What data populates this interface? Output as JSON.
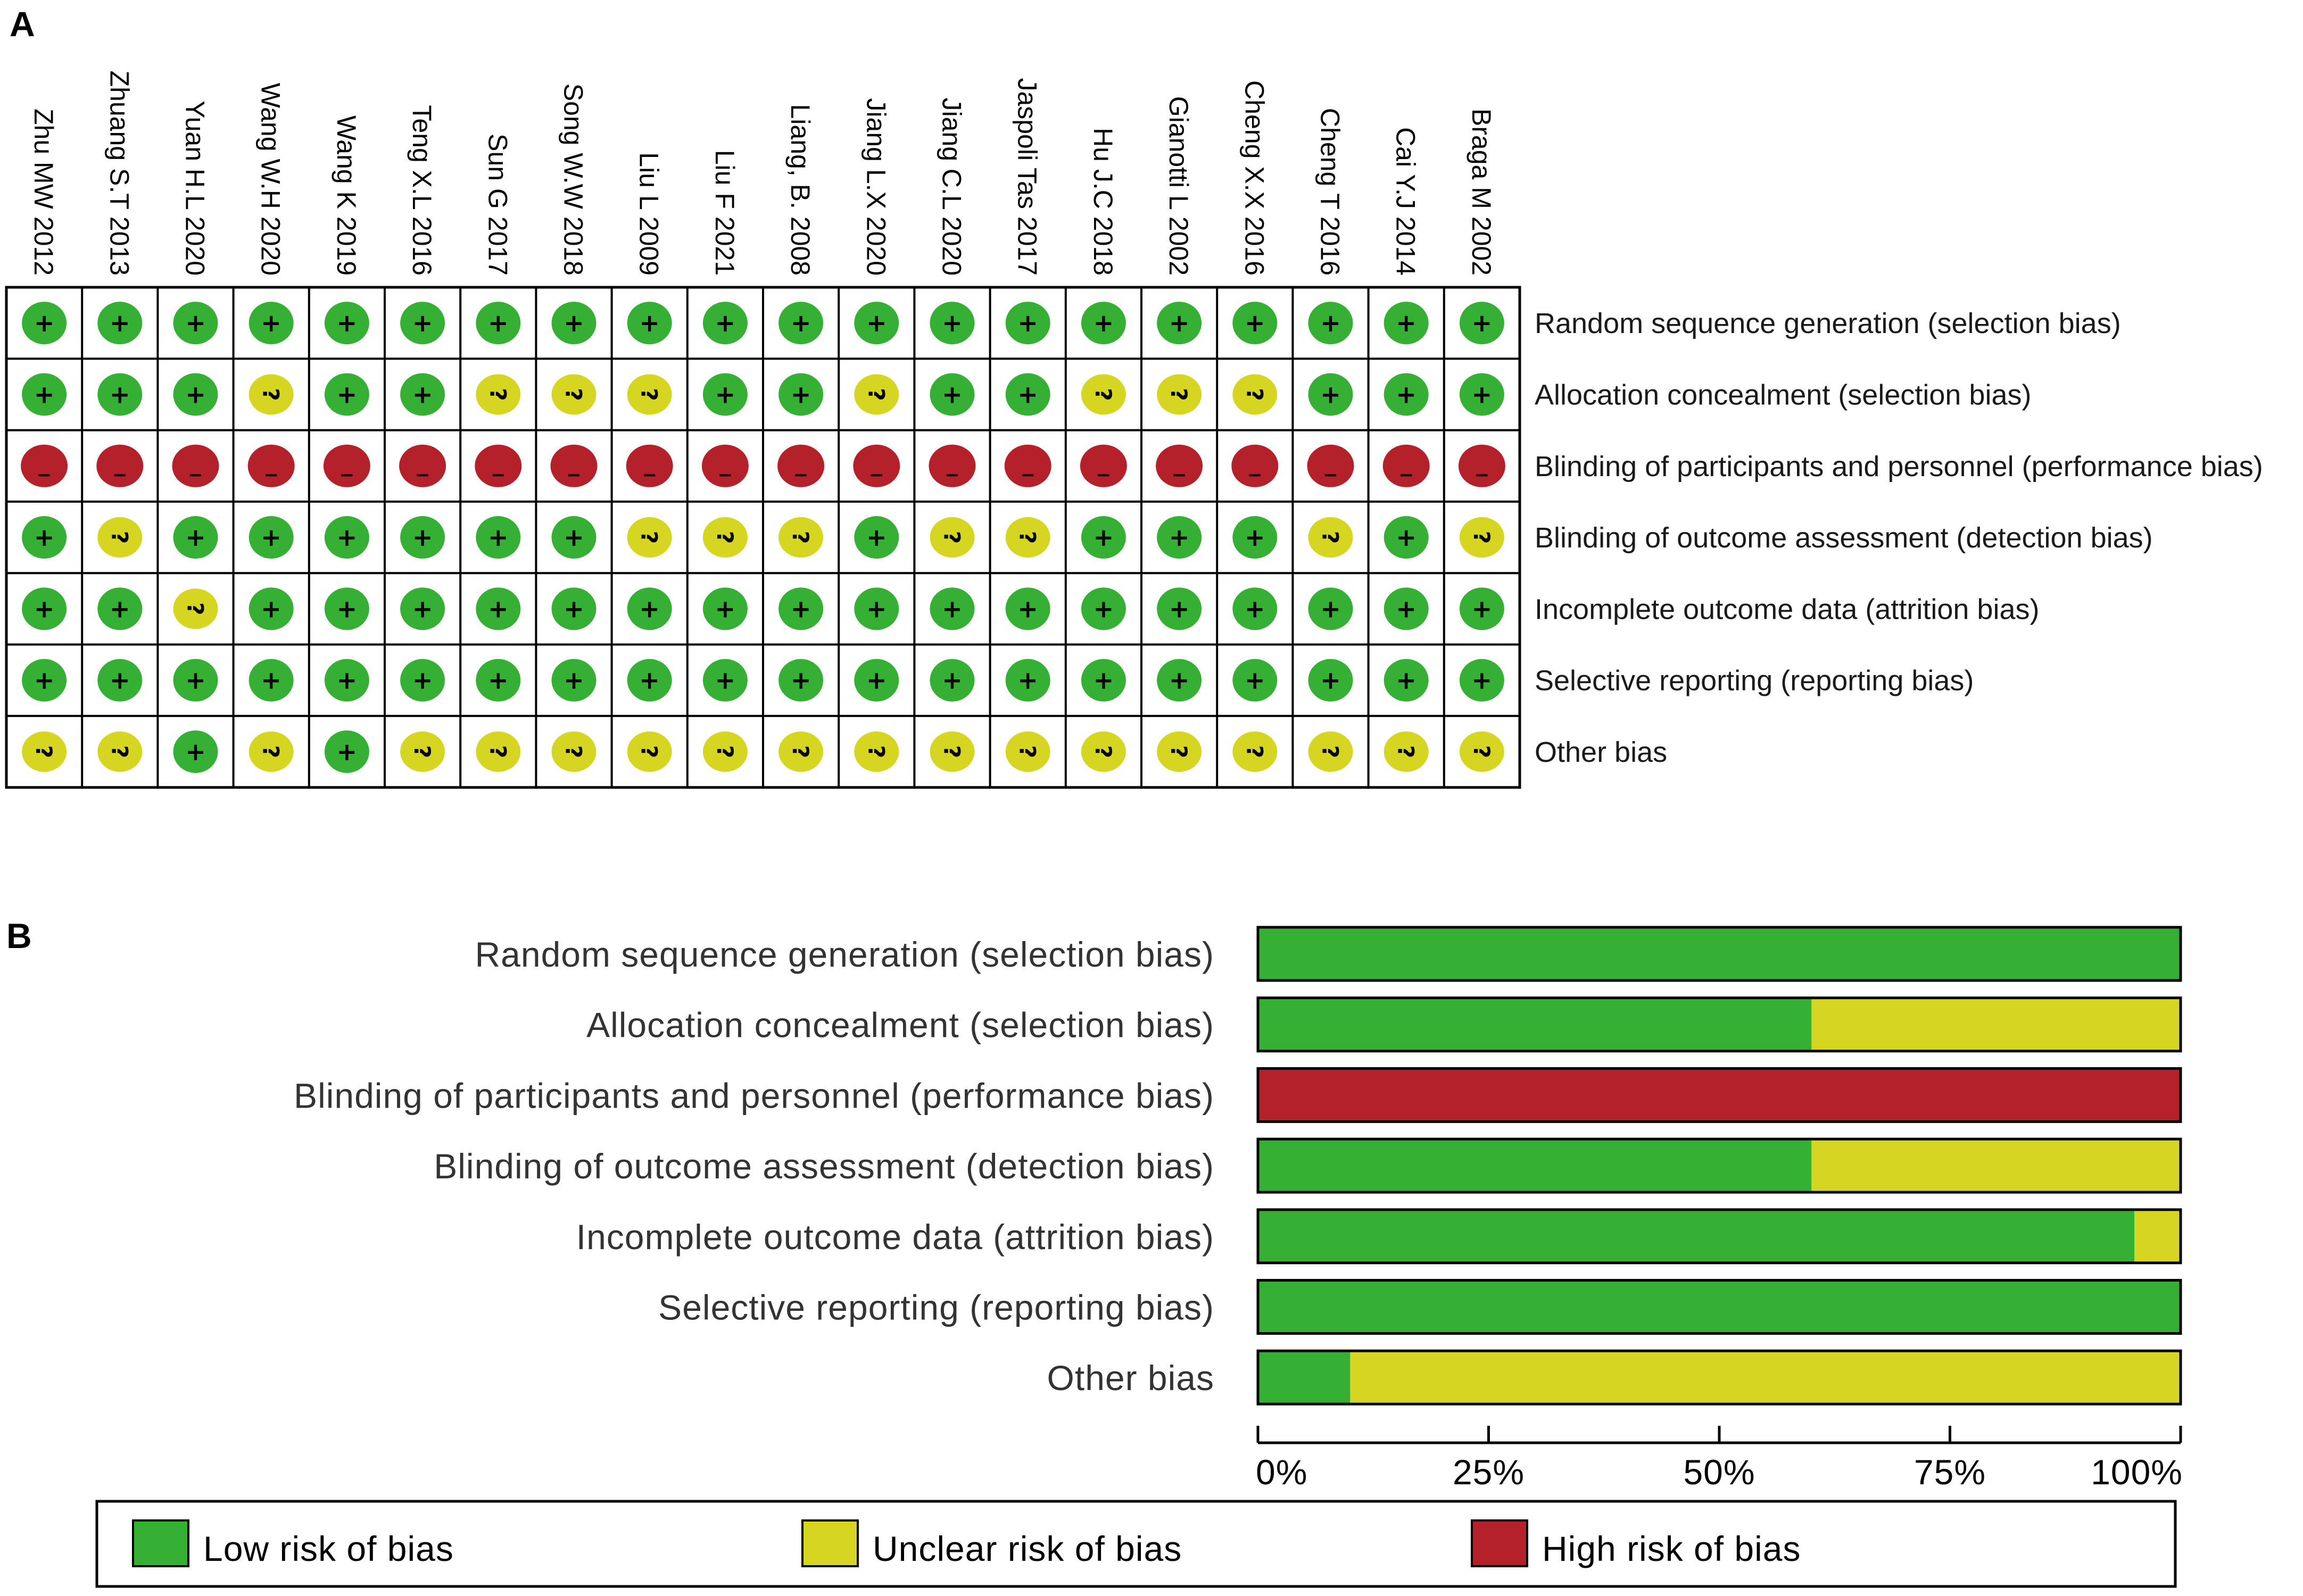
{
  "panel_a_label": "A",
  "panel_b_label": "B",
  "colors": {
    "low": "#36b034",
    "unclear": "#d6d622",
    "high": "#b5212a",
    "grid": "#000000"
  },
  "symbols": {
    "low": "+",
    "unclear": "?",
    "high": "−"
  },
  "chart_data": [
    {
      "type": "table",
      "title": "",
      "columns": [
        "Zhu MW 2012",
        "Zhuang S.T 2013",
        "Yuan H.L 2020",
        "Wang W.H 2020",
        "Wang K 2019",
        "Teng X.L 2016",
        "Sun G 2017",
        "Song W.W 2018",
        "Liu L 2009",
        "Liu F 2021",
        "Liang, B. 2008",
        "Jiang L.X 2020",
        "Jiang C.L 2020",
        "Jaspoli Tas 2017",
        "Hu J.C 2018",
        "Gianotti L 2002",
        "Cheng X.X 2016",
        "Cheng T 2016",
        "Cai Y.J 2014",
        "Braga M 2002"
      ],
      "rows": [
        "Random sequence generation (selection bias)",
        "Allocation concealment (selection bias)",
        "Blinding of participants and personnel (performance bias)",
        "Blinding of outcome assessment (detection bias)",
        "Incomplete outcome data (attrition bias)",
        "Selective reporting (reporting bias)",
        "Other bias"
      ],
      "cells": [
        [
          "low",
          "low",
          "low",
          "low",
          "low",
          "low",
          "low",
          "low",
          "low",
          "low",
          "low",
          "low",
          "low",
          "low",
          "low",
          "low",
          "low",
          "low",
          "low",
          "low"
        ],
        [
          "low",
          "low",
          "low",
          "unclear",
          "low",
          "low",
          "unclear",
          "unclear",
          "unclear",
          "low",
          "low",
          "unclear",
          "low",
          "low",
          "unclear",
          "unclear",
          "unclear",
          "low",
          "low",
          "low"
        ],
        [
          "high",
          "high",
          "high",
          "high",
          "high",
          "high",
          "high",
          "high",
          "high",
          "high",
          "high",
          "high",
          "high",
          "high",
          "high",
          "high",
          "high",
          "high",
          "high",
          "high"
        ],
        [
          "low",
          "unclear",
          "low",
          "low",
          "low",
          "low",
          "low",
          "low",
          "unclear",
          "unclear",
          "unclear",
          "low",
          "unclear",
          "unclear",
          "low",
          "low",
          "low",
          "unclear",
          "low",
          "unclear"
        ],
        [
          "low",
          "low",
          "unclear",
          "low",
          "low",
          "low",
          "low",
          "low",
          "low",
          "low",
          "low",
          "low",
          "low",
          "low",
          "low",
          "low",
          "low",
          "low",
          "low",
          "low"
        ],
        [
          "low",
          "low",
          "low",
          "low",
          "low",
          "low",
          "low",
          "low",
          "low",
          "low",
          "low",
          "low",
          "low",
          "low",
          "low",
          "low",
          "low",
          "low",
          "low",
          "low"
        ],
        [
          "unclear",
          "unclear",
          "low",
          "unclear",
          "low",
          "unclear",
          "unclear",
          "unclear",
          "unclear",
          "unclear",
          "unclear",
          "unclear",
          "unclear",
          "unclear",
          "unclear",
          "unclear",
          "unclear",
          "unclear",
          "unclear",
          "unclear"
        ]
      ]
    },
    {
      "type": "bar",
      "orientation": "horizontal-stacked",
      "title": "",
      "categories": [
        "Random sequence generation (selection bias)",
        "Allocation concealment (selection bias)",
        "Blinding of participants and personnel (performance bias)",
        "Blinding of outcome assessment (detection bias)",
        "Incomplete outcome data (attrition bias)",
        "Selective reporting (reporting bias)",
        "Other bias"
      ],
      "series": [
        {
          "name": "Low risk of bias",
          "key": "low",
          "values": [
            100,
            60,
            0,
            60,
            95,
            100,
            10
          ]
        },
        {
          "name": "Unclear risk of bias",
          "key": "unclear",
          "values": [
            0,
            40,
            0,
            40,
            5,
            0,
            90
          ]
        },
        {
          "name": "High risk of bias",
          "key": "high",
          "values": [
            0,
            0,
            100,
            0,
            0,
            0,
            0
          ]
        }
      ],
      "xlim": [
        0,
        100
      ],
      "xticks": [
        "0%",
        "25%",
        "50%",
        "75%",
        "100%"
      ],
      "xlabel": "",
      "ylabel": "",
      "legend": [
        "Low risk of bias",
        "Unclear risk of bias",
        "High risk of bias"
      ],
      "legend_position": "bottom"
    }
  ]
}
